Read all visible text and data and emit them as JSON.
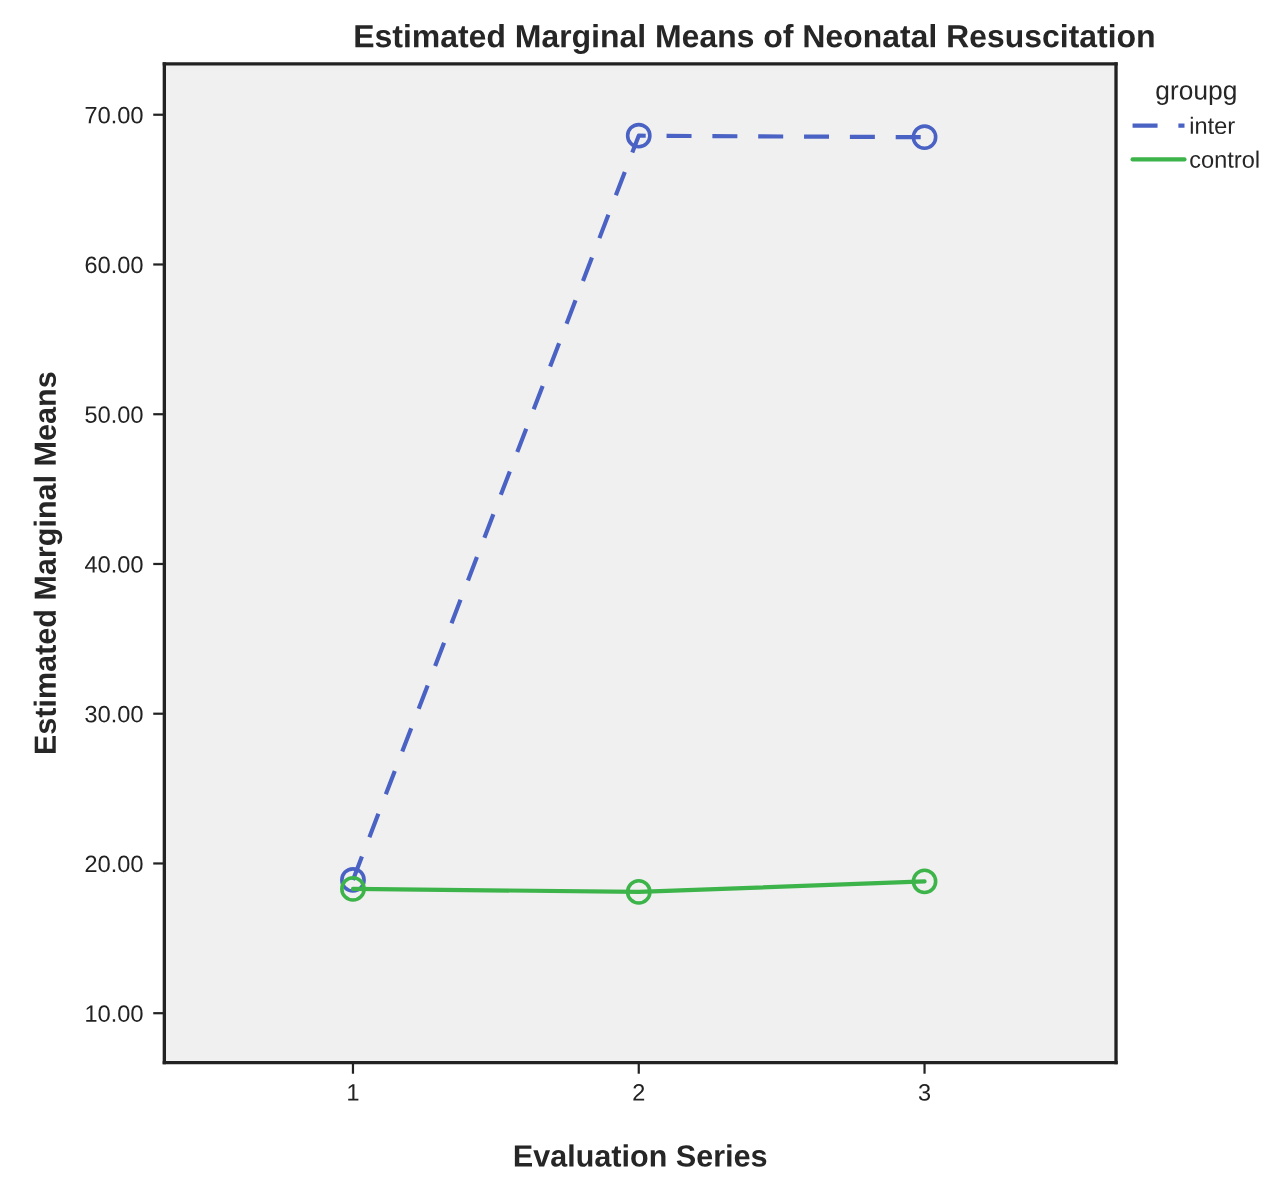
{
  "chart_data": {
    "type": "line",
    "title": "Estimated Marginal Means of Neonatal Resuscitation",
    "xlabel": "Evaluation Series",
    "ylabel": "Estimated Marginal Means",
    "legend_title": "groupg",
    "x": [
      1,
      2,
      3
    ],
    "xlim": [
      0.34,
      3.67
    ],
    "xticks": [
      1,
      2,
      3
    ],
    "ylim": [
      6.7,
      73.4
    ],
    "yticks": [
      {
        "value": 10,
        "label": "10.00"
      },
      {
        "value": 20,
        "label": "20.00"
      },
      {
        "value": 30,
        "label": "30.00"
      },
      {
        "value": 40,
        "label": "40.00"
      },
      {
        "value": 50,
        "label": "50.00"
      },
      {
        "value": 60,
        "label": "60.00"
      },
      {
        "value": 70,
        "label": "70.00"
      }
    ],
    "series": [
      {
        "name": "inter",
        "color": "#4a62c4",
        "values": [
          18.9,
          68.6,
          68.5
        ],
        "line_style": "dashed"
      },
      {
        "name": "control",
        "color": "#3cb44a",
        "values": [
          18.3,
          18.1,
          18.8
        ],
        "line_style": "solid"
      }
    ],
    "marker": "circle",
    "grid": false,
    "legend": "top right"
  }
}
